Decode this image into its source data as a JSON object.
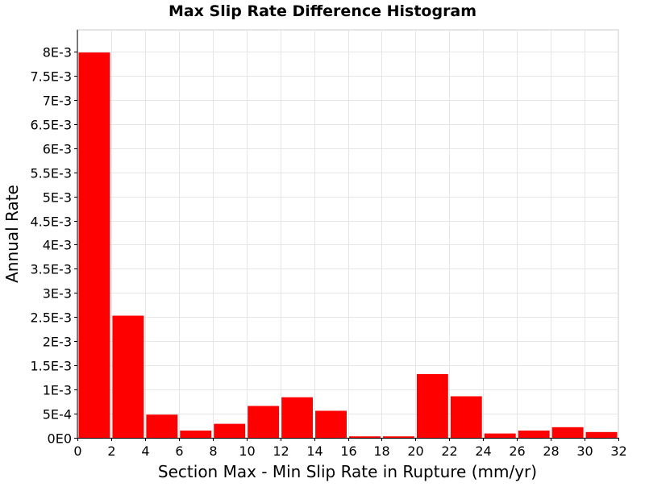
{
  "chart_data": {
    "type": "bar",
    "title": "Max Slip Rate Difference Histogram",
    "xlabel": "Section Max - Min Slip Rate in Rupture (mm/yr)",
    "ylabel": "Annual Rate",
    "xlim": [
      0,
      32
    ],
    "ylim": [
      0,
      0.00845
    ],
    "bin_width": 2,
    "bin_starts": [
      0,
      2,
      4,
      6,
      8,
      10,
      12,
      14,
      16,
      18,
      20,
      22,
      24,
      26,
      28,
      30
    ],
    "values": [
      0.00798,
      0.00253,
      0.00048,
      0.00015,
      0.00029,
      0.00066,
      0.00084,
      0.00056,
      3e-05,
      3e-05,
      0.00132,
      0.00086,
      9e-05,
      0.00015,
      0.00022,
      0.00012
    ],
    "xticks": [
      0,
      2,
      4,
      6,
      8,
      10,
      12,
      14,
      16,
      18,
      20,
      22,
      24,
      26,
      28,
      30,
      32
    ],
    "xtick_labels": [
      "0",
      "2",
      "4",
      "6",
      "8",
      "10",
      "12",
      "14",
      "16",
      "18",
      "20",
      "22",
      "24",
      "26",
      "28",
      "30",
      "32"
    ],
    "yticks": [
      0,
      0.0005,
      0.001,
      0.0015,
      0.002,
      0.0025,
      0.003,
      0.0035,
      0.004,
      0.0045,
      0.005,
      0.0055,
      0.006,
      0.0065,
      0.007,
      0.0075,
      0.008
    ],
    "ytick_labels": [
      "0E0",
      "5E-4",
      "1E-3",
      "1.5E-3",
      "2E-3",
      "2.5E-3",
      "3E-3",
      "3.5E-3",
      "4E-3",
      "4.5E-3",
      "5E-3",
      "5.5E-3",
      "6E-3",
      "6.5E-3",
      "7E-3",
      "7.5E-3",
      "8E-3"
    ],
    "grid": true,
    "legend": "none",
    "colors": {
      "bar": "#ff0000",
      "grid": "#e6e6e6",
      "plot_border": "#c8c8c8",
      "axis": "#000000"
    }
  }
}
